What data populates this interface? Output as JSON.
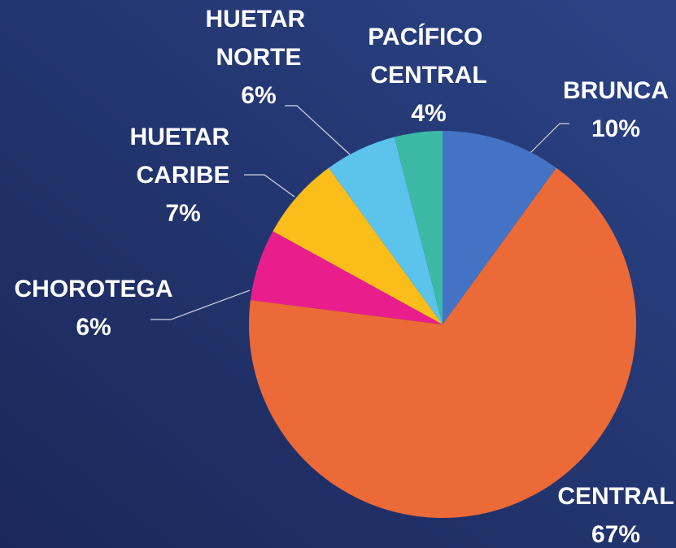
{
  "chart_data": {
    "type": "pie",
    "categories": [
      "BRUNCA",
      "CENTRAL",
      "CHOROTEGA",
      "HUETAR CARIBE",
      "HUETAR NORTE",
      "PACÍFICO CENTRAL"
    ],
    "values": [
      10,
      67,
      6,
      7,
      6,
      4
    ],
    "value_labels": [
      "10%",
      "67%",
      "6%",
      "7%",
      "6%",
      "4%"
    ],
    "colors": [
      "#4472c4",
      "#eb6a37",
      "#e91e8c",
      "#fbbd1a",
      "#5bc3ec",
      "#3cb9a4"
    ]
  }
}
